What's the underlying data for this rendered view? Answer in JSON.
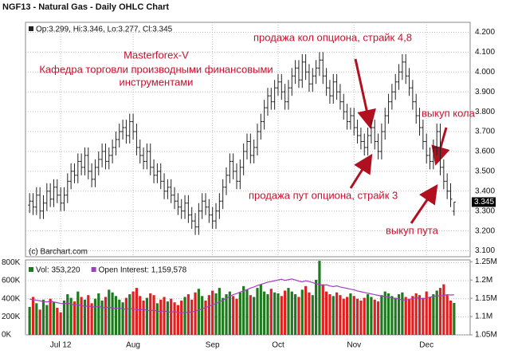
{
  "chart_data": [
    {
      "type": "ohlc",
      "title": "NGF13 - Natural Gas - Daily OHLC Chart",
      "ohlc_legend": "Op:3.299, Hi:3.346, Lo:3.277, Cl:3.345",
      "source": "(c) Barchart.com",
      "annotations": [
        "Masterforex-V",
        "Кафедра торговли производными финансовыми",
        "инструментами",
        "продажа кол опциона, страйк 4,8",
        "продажа пут опциона, страйк 3",
        "выкуп кола",
        "выкуп пута"
      ],
      "color": "#222222",
      "grid": true,
      "ylim": [
        3.07,
        4.25
      ],
      "yticks": [
        {
          "value": 3.1,
          "label": "3.100"
        },
        {
          "value": 3.2,
          "label": "3.200"
        },
        {
          "value": 3.3,
          "label": "3.300"
        },
        {
          "value": 3.4,
          "label": "3.400"
        },
        {
          "value": 3.5,
          "label": "3.500"
        },
        {
          "value": 3.6,
          "label": "3.600"
        },
        {
          "value": 3.7,
          "label": "3.700"
        },
        {
          "value": 3.8,
          "label": "3.800"
        },
        {
          "value": 3.9,
          "label": "3.900"
        },
        {
          "value": 4.0,
          "label": "4.000"
        },
        {
          "value": 4.1,
          "label": "4.100"
        },
        {
          "value": 4.2,
          "label": "4.200"
        }
      ],
      "open": [
        3.33,
        3.35,
        3.32,
        3.38,
        3.3,
        3.34,
        3.4,
        3.36,
        3.42,
        3.38,
        3.34,
        3.38,
        3.45,
        3.5,
        3.48,
        3.55,
        3.52,
        3.58,
        3.5,
        3.46,
        3.52,
        3.56,
        3.6,
        3.55,
        3.58,
        3.62,
        3.66,
        3.7,
        3.72,
        3.68,
        3.75,
        3.7,
        3.62,
        3.58,
        3.55,
        3.6,
        3.52,
        3.48,
        3.5,
        3.45,
        3.4,
        3.42,
        3.38,
        3.35,
        3.32,
        3.3,
        3.34,
        3.28,
        3.25,
        3.22,
        3.3,
        3.35,
        3.32,
        3.28,
        3.25,
        3.3,
        3.35,
        3.42,
        3.48,
        3.55,
        3.5,
        3.45,
        3.52,
        3.6,
        3.65,
        3.58,
        3.62,
        3.7,
        3.75,
        3.82,
        3.88,
        3.85,
        3.92,
        3.95,
        3.9,
        3.85,
        3.92,
        3.98,
        4.02,
        3.96,
        4.05,
        4.0,
        3.94,
        3.98,
        4.02,
        4.06,
        3.98,
        3.92,
        3.88,
        3.95,
        3.9,
        3.85,
        3.8,
        3.75,
        3.78,
        3.72,
        3.68,
        3.65,
        3.62,
        3.68,
        3.72,
        3.65,
        3.6,
        3.7,
        3.78,
        3.85,
        3.9,
        3.95,
        4.0,
        4.05,
        3.98,
        3.92,
        3.85,
        3.78,
        3.72,
        3.65,
        3.58,
        3.55,
        3.62,
        3.7,
        3.52,
        3.45,
        3.4,
        3.299
      ],
      "high": [
        3.39,
        3.39,
        3.42,
        3.42,
        3.38,
        3.44,
        3.44,
        3.46,
        3.46,
        3.42,
        3.42,
        3.49,
        3.54,
        3.54,
        3.59,
        3.59,
        3.62,
        3.62,
        3.54,
        3.56,
        3.6,
        3.64,
        3.64,
        3.62,
        3.66,
        3.7,
        3.74,
        3.76,
        3.76,
        3.79,
        3.79,
        3.74,
        3.66,
        3.62,
        3.64,
        3.64,
        3.56,
        3.54,
        3.54,
        3.49,
        3.46,
        3.46,
        3.42,
        3.39,
        3.36,
        3.38,
        3.38,
        3.32,
        3.29,
        3.34,
        3.39,
        3.39,
        3.36,
        3.32,
        3.34,
        3.39,
        3.46,
        3.52,
        3.59,
        3.59,
        3.54,
        3.56,
        3.64,
        3.69,
        3.69,
        3.66,
        3.74,
        3.79,
        3.86,
        3.92,
        3.92,
        3.96,
        3.99,
        3.99,
        3.94,
        3.96,
        4.02,
        4.06,
        4.06,
        4.09,
        4.09,
        4.04,
        4.02,
        4.06,
        4.1,
        4.1,
        4.02,
        3.96,
        3.99,
        3.99,
        3.94,
        3.89,
        3.84,
        3.82,
        3.82,
        3.76,
        3.72,
        3.69,
        3.72,
        3.76,
        3.76,
        3.69,
        3.74,
        3.82,
        3.89,
        3.94,
        3.99,
        4.04,
        4.09,
        4.09,
        4.02,
        3.96,
        3.89,
        3.82,
        3.76,
        3.69,
        3.62,
        3.66,
        3.74,
        3.74,
        3.56,
        3.49,
        3.44,
        3.346
      ],
      "low": [
        3.29,
        3.28,
        3.28,
        3.26,
        3.26,
        3.3,
        3.32,
        3.32,
        3.34,
        3.3,
        3.3,
        3.34,
        3.41,
        3.44,
        3.44,
        3.48,
        3.48,
        3.46,
        3.42,
        3.42,
        3.48,
        3.52,
        3.51,
        3.51,
        3.54,
        3.58,
        3.62,
        3.66,
        3.64,
        3.64,
        3.66,
        3.58,
        3.54,
        3.51,
        3.51,
        3.48,
        3.44,
        3.44,
        3.41,
        3.36,
        3.36,
        3.34,
        3.31,
        3.28,
        3.26,
        3.26,
        3.24,
        3.21,
        3.18,
        3.18,
        3.26,
        3.28,
        3.24,
        3.21,
        3.21,
        3.26,
        3.31,
        3.38,
        3.44,
        3.46,
        3.41,
        3.41,
        3.48,
        3.56,
        3.54,
        3.54,
        3.58,
        3.66,
        3.71,
        3.78,
        3.81,
        3.81,
        3.88,
        3.86,
        3.81,
        3.81,
        3.88,
        3.94,
        3.92,
        3.92,
        3.96,
        3.9,
        3.9,
        3.94,
        3.98,
        3.94,
        3.88,
        3.84,
        3.84,
        3.86,
        3.81,
        3.76,
        3.71,
        3.71,
        3.68,
        3.64,
        3.61,
        3.58,
        3.58,
        3.64,
        3.61,
        3.56,
        3.56,
        3.66,
        3.74,
        3.81,
        3.86,
        3.91,
        3.96,
        3.94,
        3.88,
        3.81,
        3.74,
        3.68,
        3.61,
        3.54,
        3.51,
        3.51,
        3.58,
        3.48,
        3.41,
        3.36,
        3.32,
        3.277
      ],
      "close": [
        3.35,
        3.32,
        3.38,
        3.3,
        3.34,
        3.4,
        3.36,
        3.42,
        3.38,
        3.34,
        3.38,
        3.45,
        3.5,
        3.48,
        3.55,
        3.52,
        3.58,
        3.5,
        3.46,
        3.52,
        3.56,
        3.6,
        3.55,
        3.58,
        3.62,
        3.66,
        3.7,
        3.72,
        3.68,
        3.75,
        3.7,
        3.62,
        3.58,
        3.55,
        3.6,
        3.52,
        3.48,
        3.5,
        3.45,
        3.4,
        3.42,
        3.38,
        3.35,
        3.32,
        3.3,
        3.34,
        3.28,
        3.25,
        3.22,
        3.3,
        3.35,
        3.32,
        3.28,
        3.25,
        3.3,
        3.35,
        3.42,
        3.48,
        3.55,
        3.5,
        3.45,
        3.52,
        3.6,
        3.65,
        3.58,
        3.62,
        3.7,
        3.75,
        3.82,
        3.88,
        3.85,
        3.92,
        3.95,
        3.9,
        3.85,
        3.92,
        3.98,
        4.02,
        3.96,
        4.05,
        4.0,
        3.94,
        3.98,
        4.02,
        4.06,
        3.98,
        3.92,
        3.88,
        3.95,
        3.9,
        3.85,
        3.8,
        3.75,
        3.78,
        3.72,
        3.68,
        3.65,
        3.62,
        3.68,
        3.72,
        3.65,
        3.6,
        3.7,
        3.78,
        3.85,
        3.9,
        3.95,
        4.0,
        4.05,
        3.98,
        3.92,
        3.85,
        3.78,
        3.72,
        3.65,
        3.58,
        3.55,
        3.62,
        3.7,
        3.52,
        3.45,
        3.4,
        3.36,
        3.345
      ]
    },
    {
      "type": "bar",
      "categories": [
        null,
        null,
        null,
        null,
        null,
        null,
        null,
        null,
        null,
        "Jul 12",
        null,
        null,
        null,
        null,
        null,
        null,
        null,
        null,
        null,
        null,
        null,
        null,
        null,
        null,
        null,
        null,
        null,
        null,
        null,
        null,
        "Aug",
        null,
        null,
        null,
        null,
        null,
        null,
        null,
        null,
        null,
        null,
        null,
        null,
        null,
        null,
        null,
        null,
        null,
        null,
        null,
        null,
        null,
        null,
        "Sep",
        null,
        null,
        null,
        null,
        null,
        null,
        null,
        null,
        null,
        null,
        null,
        null,
        null,
        null,
        null,
        null,
        null,
        null,
        "Oct",
        null,
        null,
        null,
        null,
        null,
        null,
        null,
        null,
        null,
        null,
        null,
        null,
        null,
        null,
        null,
        null,
        null,
        null,
        null,
        null,
        null,
        "Nov",
        null,
        null,
        null,
        null,
        null,
        null,
        null,
        null,
        null,
        null,
        null,
        null,
        null,
        null,
        null,
        null,
        null,
        null,
        null,
        null,
        "Dec",
        null,
        null,
        null,
        null,
        null,
        null,
        null,
        null
      ],
      "ylim": [
        0,
        830000
      ],
      "yticks": [
        {
          "value": 0,
          "label": "0K"
        },
        {
          "value": 200000,
          "label": "200K"
        },
        {
          "value": 400000,
          "label": "400K"
        },
        {
          "value": 600000,
          "label": "600K"
        },
        {
          "value": 800000,
          "label": "800K"
        }
      ],
      "y2lim": [
        1050000,
        1255000
      ],
      "y2ticks": [
        {
          "value": 1050000,
          "label": "1.05M"
        },
        {
          "value": 1100000,
          "label": "1.1M"
        },
        {
          "value": 1150000,
          "label": "1.15M"
        },
        {
          "value": 1200000,
          "label": "1.2M"
        },
        {
          "value": 1250000,
          "label": "1.25M"
        }
      ],
      "grid": true,
      "series": [
        {
          "name": "Vol: 353,220",
          "up_color": "#1f7a1f",
          "down_color": "#e02020",
          "values": [
            310000,
            420000,
            350000,
            280000,
            390000,
            330000,
            400000,
            360000,
            300000,
            250000,
            380000,
            450000,
            410000,
            370000,
            480000,
            420000,
            390000,
            440000,
            350000,
            400000,
            460000,
            380000,
            420000,
            500000,
            470000,
            430000,
            390000,
            360000,
            410000,
            450000,
            480000,
            520000,
            430000,
            380000,
            410000,
            460000,
            440000,
            350000,
            390000,
            420000,
            370000,
            400000,
            360000,
            330000,
            380000,
            420000,
            450000,
            390000,
            470000,
            510000,
            430000,
            380000,
            440000,
            490000,
            460000,
            520000,
            410000,
            450000,
            480000,
            430000,
            400000,
            470000,
            540000,
            500000,
            440000,
            420000,
            520000,
            560000,
            480000,
            450000,
            510000,
            470000,
            460000,
            430000,
            490000,
            520000,
            480000,
            450000,
            420000,
            500000,
            540000,
            470000,
            440000,
            610000,
            820000,
            560000,
            480000,
            450000,
            430000,
            470000,
            440000,
            400000,
            420000,
            460000,
            430000,
            400000,
            380000,
            410000,
            450000,
            420000,
            390000,
            370000,
            440000,
            480000,
            460000,
            430000,
            410000,
            450000,
            470000,
            420000,
            400000,
            430000,
            460000,
            440000,
            410000,
            480000,
            420000,
            450000,
            490000,
            520000,
            560000,
            440000,
            380000,
            353220
          ]
        },
        {
          "name": "Open Interest: 1,159,578",
          "color": "#a040c0",
          "axis": "y2",
          "values": [
            1148000,
            1146000,
            1145000,
            1143000,
            1141000,
            1140000,
            1142000,
            1140000,
            1138000,
            1136000,
            1135000,
            1137000,
            1134000,
            1132000,
            1133000,
            1130000,
            1128000,
            1129000,
            1127000,
            1126000,
            1128000,
            1125000,
            1124000,
            1126000,
            1123000,
            1122000,
            1124000,
            1121000,
            1120000,
            1122000,
            1121000,
            1119000,
            1118000,
            1120000,
            1117000,
            1116000,
            1118000,
            1115000,
            1114000,
            1116000,
            1113000,
            1112000,
            1114000,
            1111000,
            1110000,
            1112000,
            1111000,
            1113000,
            1115000,
            1118000,
            1121000,
            1125000,
            1128000,
            1132000,
            1136000,
            1140000,
            1145000,
            1150000,
            1155000,
            1160000,
            1163000,
            1167000,
            1170000,
            1174000,
            1178000,
            1181000,
            1185000,
            1188000,
            1191000,
            1194000,
            1196000,
            1198000,
            1200000,
            1202000,
            1199000,
            1201000,
            1203000,
            1200000,
            1197000,
            1195000,
            1198000,
            1196000,
            1193000,
            1190000,
            1188000,
            1185000,
            1187000,
            1184000,
            1182000,
            1184000,
            1181000,
            1179000,
            1177000,
            1175000,
            1173000,
            1170000,
            1168000,
            1166000,
            1164000,
            1162000,
            1160000,
            1158000,
            1156000,
            1155000,
            1153000,
            1151000,
            1150000,
            1148000,
            1146000,
            1145000,
            1147000,
            1149000,
            1152000,
            1150000,
            1148000,
            1151000,
            1153000,
            1155000,
            1157000,
            1156000,
            1158000,
            1160000,
            1159000,
            1159578
          ]
        }
      ]
    }
  ]
}
